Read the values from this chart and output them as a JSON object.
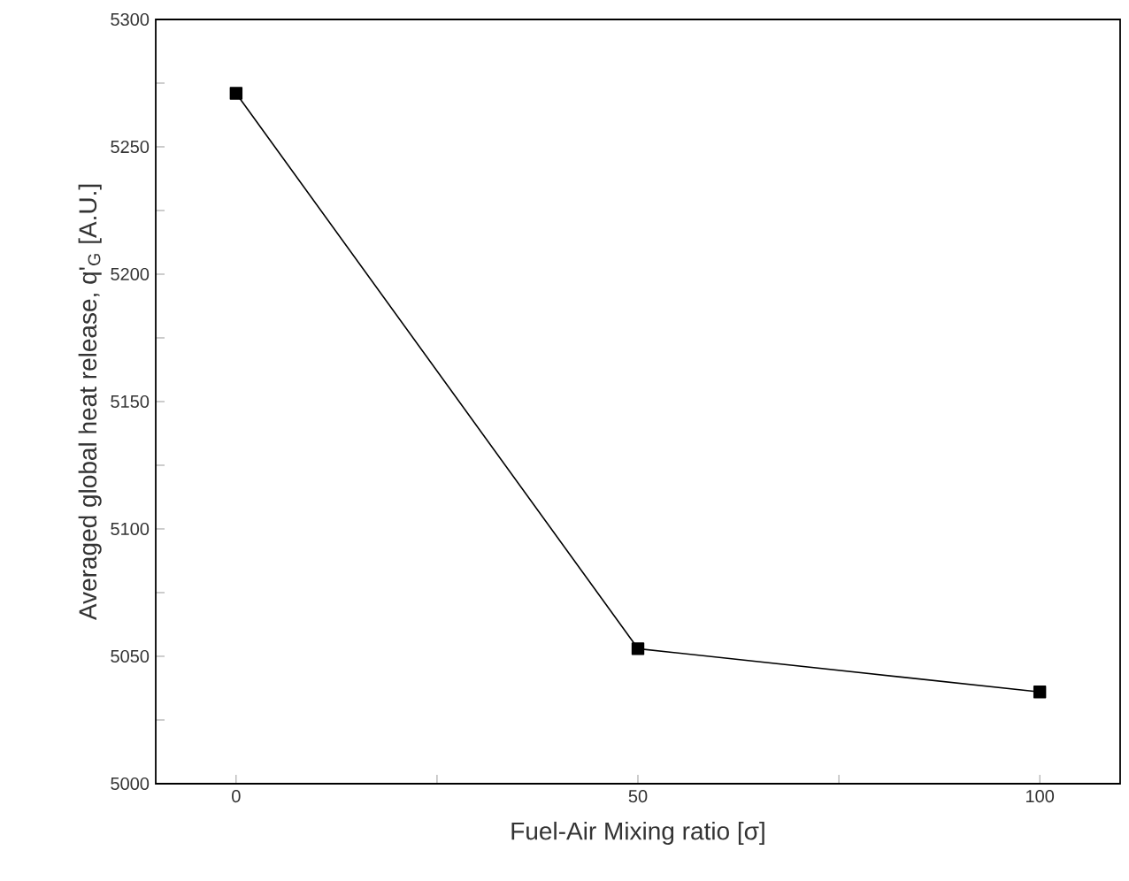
{
  "chart_data": {
    "type": "line",
    "xlabel": "Fuel-Air Mixing ratio [σ]",
    "ylabel": "Averaged global heat release, q'$_{G}$ [A.U.]",
    "x": [
      0,
      50,
      100
    ],
    "series": [
      {
        "color": "#000000",
        "values": [
          5271,
          5053,
          5036
        ]
      }
    ],
    "xlim": [
      -10,
      110
    ],
    "xticks": [
      0,
      {
        "value": 25,
        "label": null
      },
      50,
      {
        "value": 75,
        "label": null
      },
      100
    ],
    "ylim": [
      5000,
      5300
    ],
    "yticks": [
      5000,
      {
        "value": 5025,
        "label": null
      },
      5050,
      {
        "value": 5075,
        "label": null
      },
      5100,
      {
        "value": 5125,
        "label": null
      },
      5150,
      {
        "value": 5175,
        "label": null
      },
      5200,
      {
        "value": 5225,
        "label": null
      },
      5250,
      {
        "value": 5275,
        "label": null
      },
      5300
    ],
    "marker": "square",
    "line_style": "solid"
  }
}
